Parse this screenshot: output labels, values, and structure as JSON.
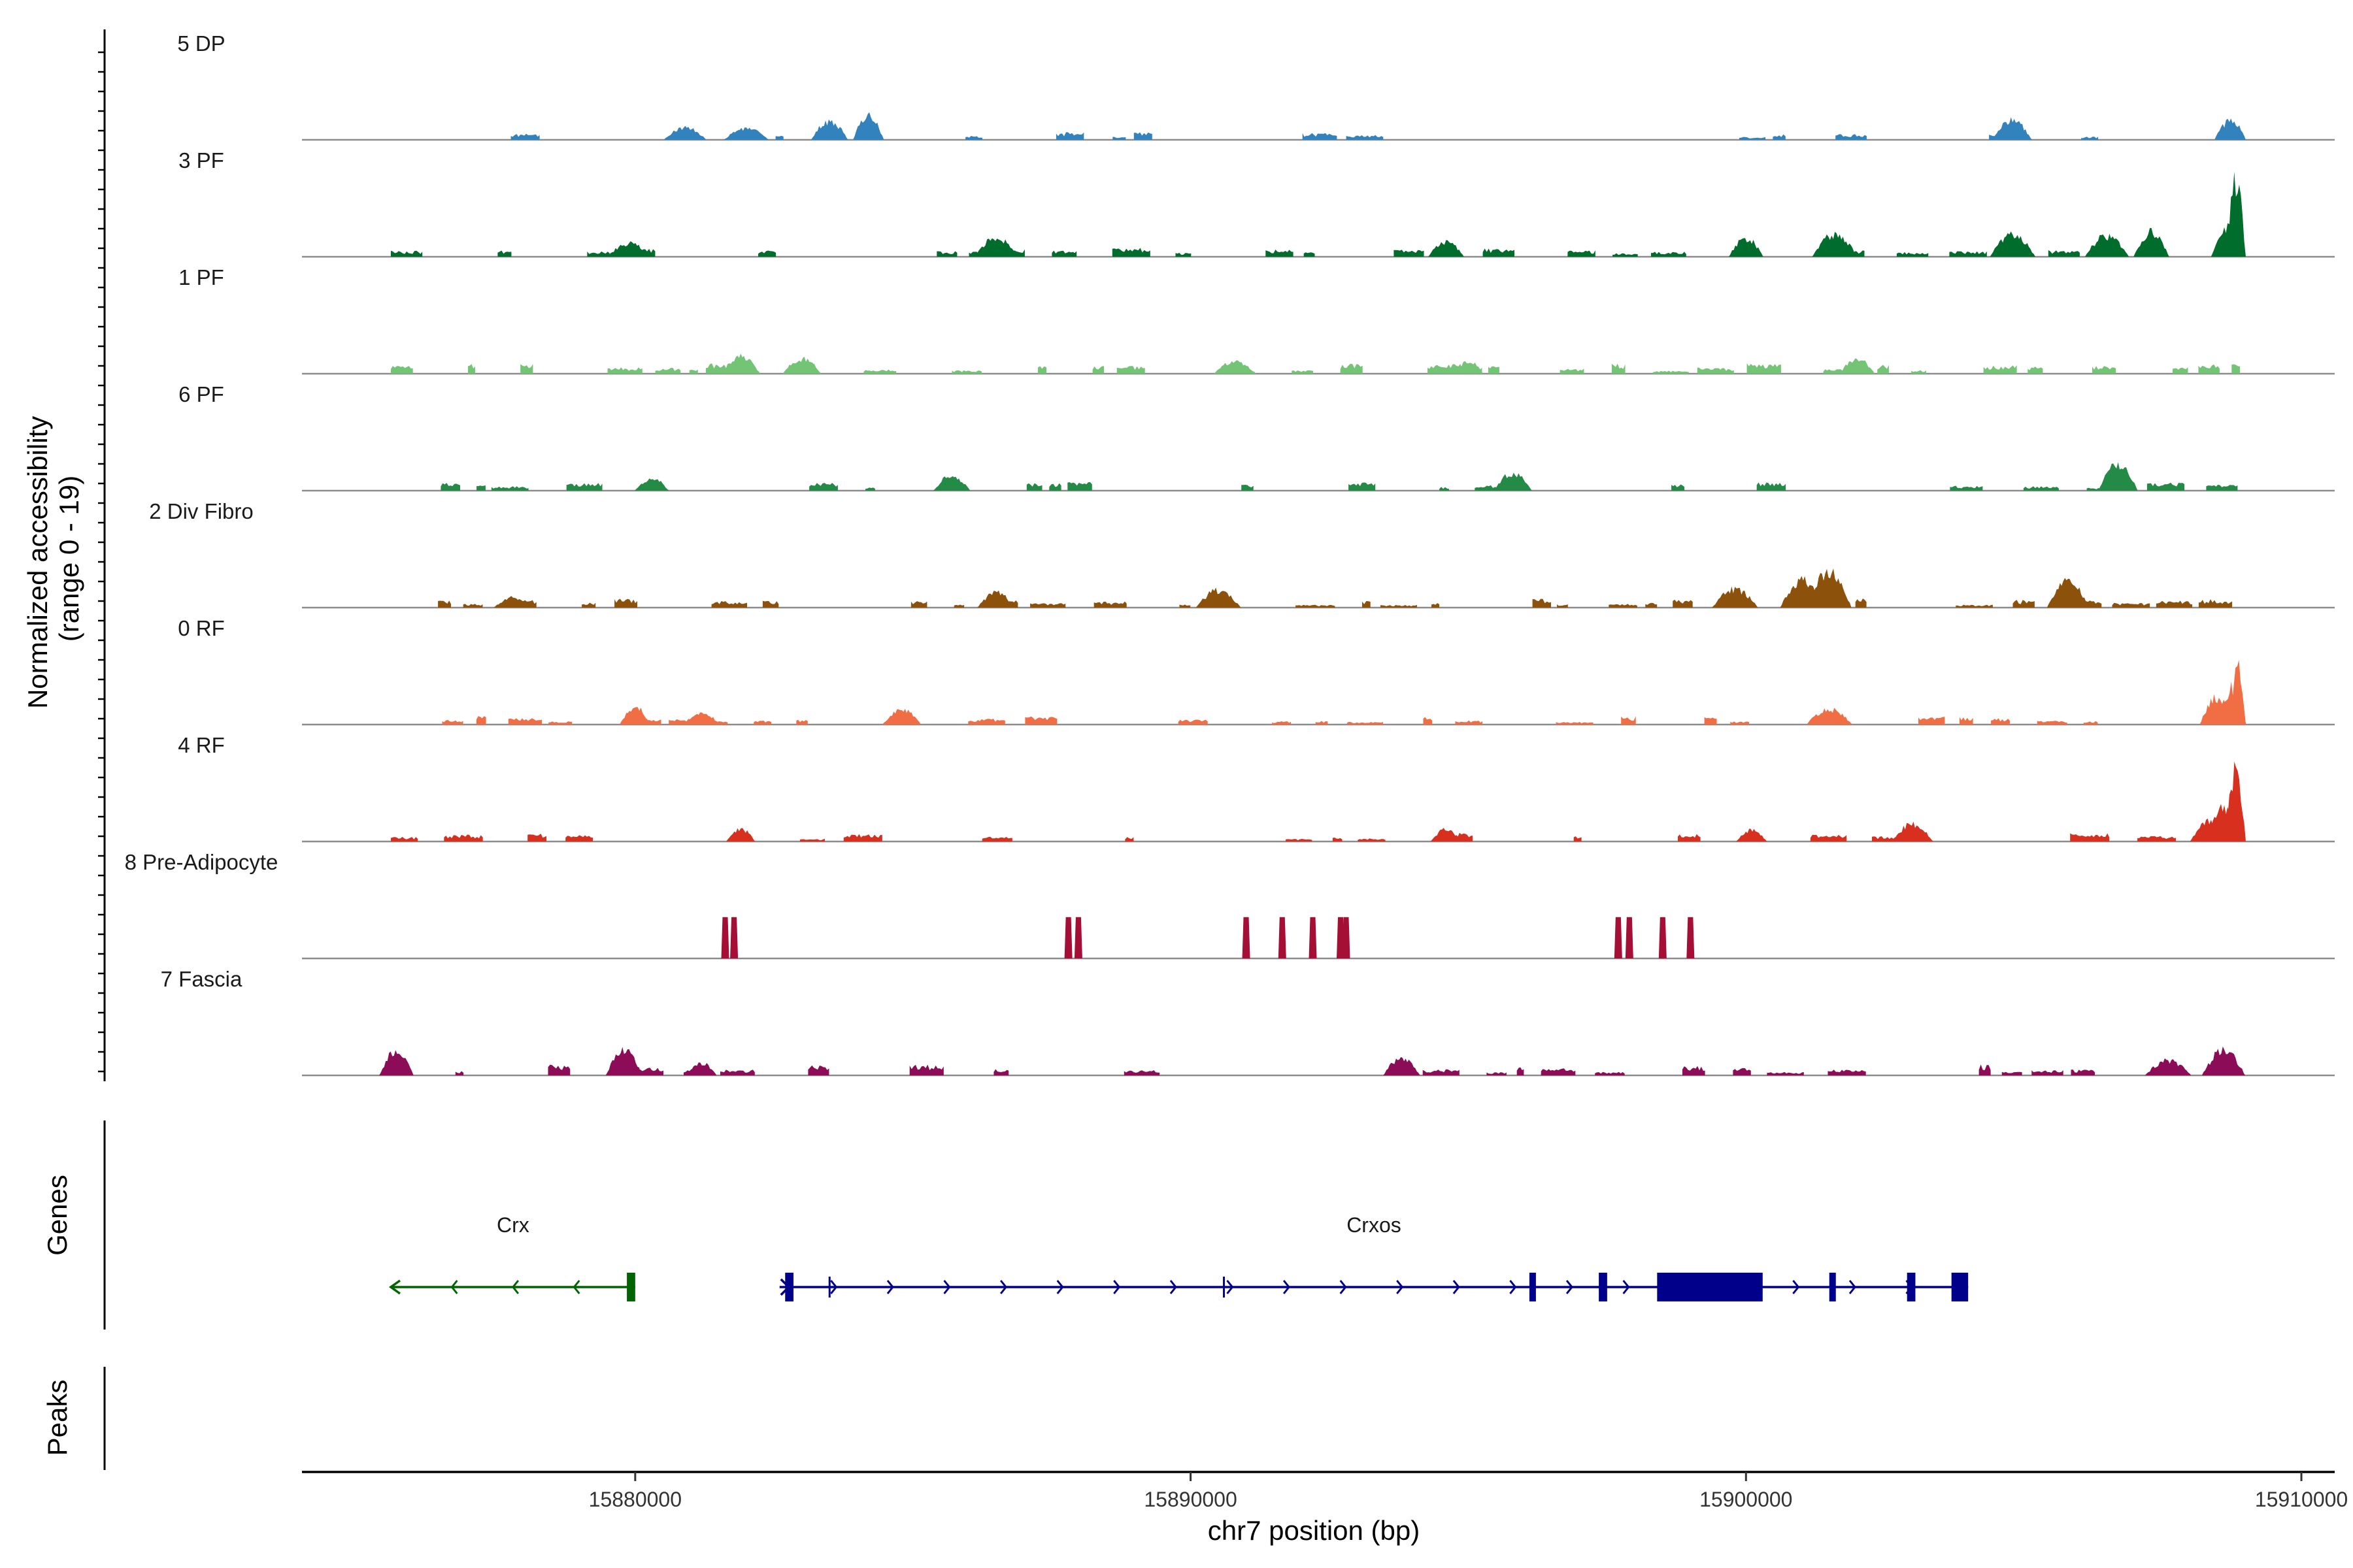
{
  "chart_data": {
    "type": "coverage",
    "y_axis_title_line1": "Normalized accessibility",
    "y_axis_title_line2": "(range 0 - 19)",
    "x_axis_title": "chr7 position (bp)",
    "genes_title": "Genes",
    "peaks_title": "Peaks",
    "y_range": [
      0,
      19
    ],
    "x_range": [
      15874000,
      15910600
    ],
    "x_ticks": [
      15880000,
      15890000,
      15900000,
      15910000
    ],
    "x_tick_labels": [
      "15880000",
      "15890000",
      "15900000",
      "15910000"
    ],
    "tracks": [
      {
        "name": "5 DP",
        "color": "#3182bd",
        "start": 15875800,
        "end": 15909000,
        "density": 0.35,
        "level": 4.5,
        "seed": 11,
        "peaks": [
          [
            15883500,
            15
          ],
          [
            15884200,
            20
          ],
          [
            15882000,
            9
          ],
          [
            15904800,
            16
          ],
          [
            15908800,
            15
          ],
          [
            15909000,
            12
          ],
          [
            15880900,
            10
          ]
        ]
      },
      {
        "name": "3 PF",
        "color": "#006d2c",
        "start": 15875600,
        "end": 15909000,
        "density": 0.55,
        "level": 5.0,
        "seed": 23,
        "peaks": [
          [
            15909000,
            60
          ],
          [
            15908700,
            25
          ],
          [
            15901600,
            18
          ],
          [
            15886500,
            15
          ],
          [
            15879900,
            11
          ],
          [
            15894600,
            12
          ],
          [
            15900000,
            15
          ],
          [
            15904800,
            18
          ],
          [
            15907300,
            20
          ],
          [
            15906500,
            17
          ]
        ]
      },
      {
        "name": "1 PF",
        "color": "#74c476",
        "start": 15875600,
        "end": 15909000,
        "density": 0.7,
        "level": 6.0,
        "seed": 37,
        "peaks": [
          [
            15881900,
            14
          ],
          [
            15883000,
            12
          ],
          [
            15902000,
            12
          ],
          [
            15895000,
            10
          ],
          [
            15890800,
            10
          ]
        ]
      },
      {
        "name": "6 PF",
        "color": "#238b45",
        "start": 15876500,
        "end": 15909000,
        "density": 0.45,
        "level": 5.0,
        "seed": 41,
        "peaks": [
          [
            15906700,
            22
          ],
          [
            15885700,
            12
          ],
          [
            15895800,
            14
          ],
          [
            15880300,
            10
          ]
        ]
      },
      {
        "name": "2 Div Fibro",
        "color": "#8c510a",
        "start": 15875600,
        "end": 15909000,
        "density": 0.6,
        "level": 5.0,
        "seed": 53,
        "peaks": [
          [
            15901500,
            30
          ],
          [
            15901000,
            22
          ],
          [
            15899800,
            15
          ],
          [
            15905800,
            22
          ],
          [
            15890500,
            14
          ],
          [
            15886500,
            12
          ],
          [
            15877800,
            8
          ]
        ]
      },
      {
        "name": "0 RF",
        "color": "#f16d44",
        "start": 15875600,
        "end": 15909000,
        "density": 0.6,
        "level": 5.0,
        "seed": 67,
        "peaks": [
          [
            15909000,
            45
          ],
          [
            15908800,
            30
          ],
          [
            15908500,
            22
          ],
          [
            15880000,
            14
          ],
          [
            15884800,
            12
          ],
          [
            15881200,
            10
          ],
          [
            15901500,
            12
          ]
        ]
      },
      {
        "name": "4 RF",
        "color": "#d7301f",
        "start": 15875600,
        "end": 15909000,
        "density": 0.4,
        "level": 5.0,
        "seed": 79,
        "peaks": [
          [
            15909000,
            55
          ],
          [
            15908700,
            28
          ],
          [
            15908400,
            18
          ],
          [
            15903000,
            14
          ],
          [
            15894600,
            10
          ],
          [
            15881900,
            10
          ],
          [
            15900100,
            9
          ]
        ]
      },
      {
        "name": "8 Pre-Adipocyte",
        "color": "#a50f36",
        "start": 15881600,
        "end": 15899100,
        "density": 0,
        "level": 0,
        "seed": 0,
        "peaks": [
          [
            15881620,
            28
          ],
          [
            15881780,
            28
          ],
          [
            15887800,
            28
          ],
          [
            15887980,
            28
          ],
          [
            15891000,
            28
          ],
          [
            15891650,
            28
          ],
          [
            15892200,
            28
          ],
          [
            15892700,
            28
          ],
          [
            15892800,
            28
          ],
          [
            15897700,
            28
          ],
          [
            15897900,
            28
          ],
          [
            15898500,
            28
          ],
          [
            15899000,
            28
          ]
        ]
      },
      {
        "name": "7 Fascia",
        "color": "#8c0c57",
        "start": 15875600,
        "end": 15909000,
        "density": 0.5,
        "level": 6.0,
        "seed": 97,
        "peaks": [
          [
            15875700,
            20
          ],
          [
            15879800,
            20
          ],
          [
            15908600,
            20
          ],
          [
            15893800,
            14
          ],
          [
            15881200,
            10
          ],
          [
            15907600,
            12
          ]
        ]
      }
    ],
    "genes": [
      {
        "name": "Crx",
        "color": "#006400",
        "strand": "-",
        "start": 15875600,
        "end": 15880000,
        "exons": [
          [
            15879850,
            15880000
          ]
        ]
      },
      {
        "name": "Crxos",
        "color": "#00008b",
        "strand": "+",
        "start": 15882600,
        "end": 15904000,
        "exons": [
          [
            15882700,
            15882850
          ],
          [
            15896100,
            15896200
          ],
          [
            15897350,
            15897500
          ],
          [
            15898400,
            15900300
          ],
          [
            15901500,
            15901600
          ],
          [
            15902900,
            15903050
          ],
          [
            15903700,
            15904000
          ]
        ],
        "minor_ticks": [
          15883500,
          15890600
        ]
      }
    ]
  }
}
